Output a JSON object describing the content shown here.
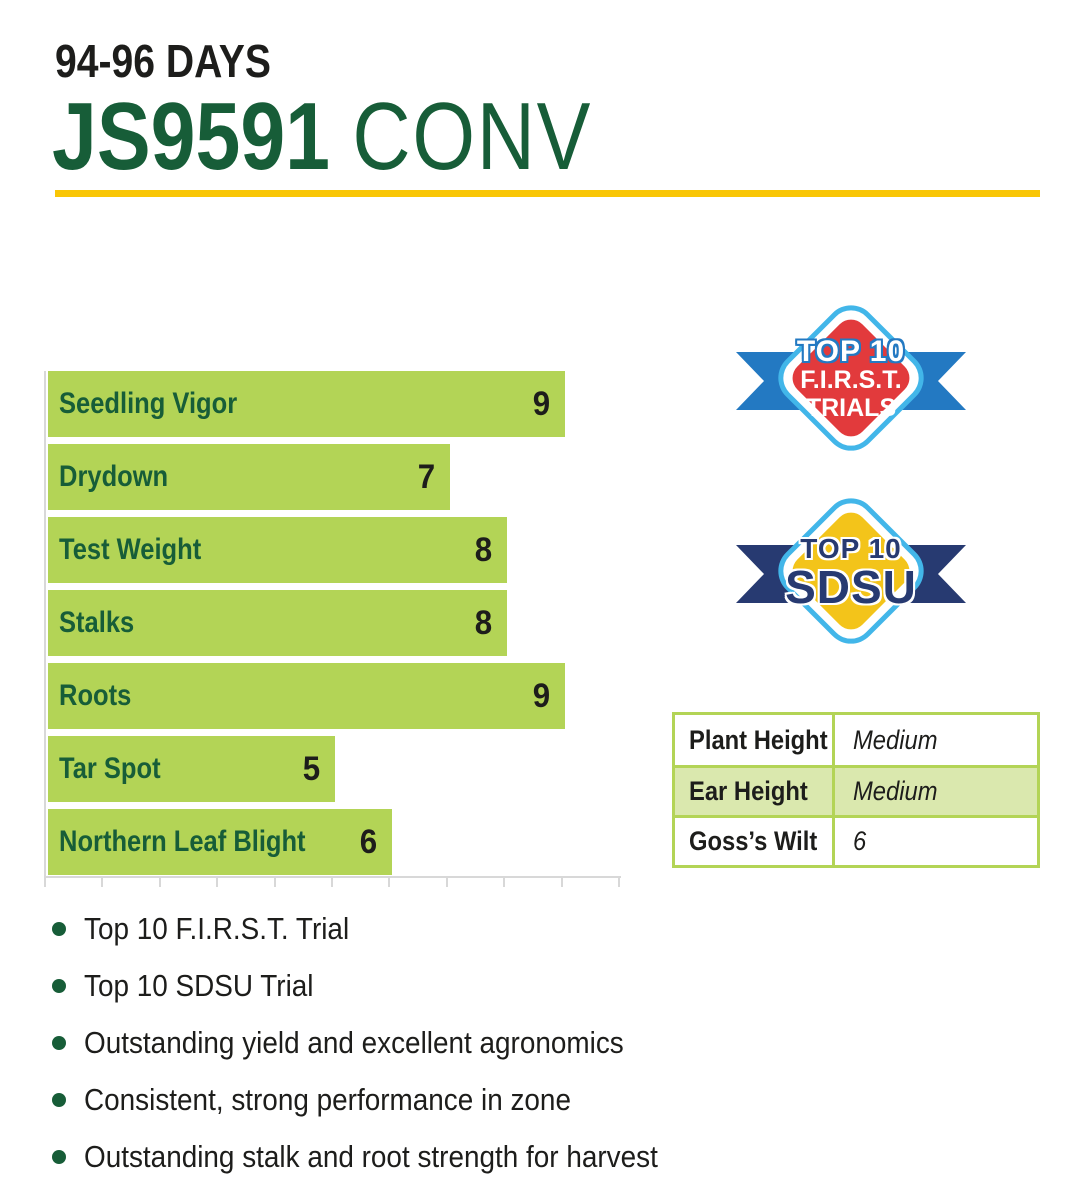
{
  "header": {
    "maturity": "94-96 DAYS",
    "hybrid": "JS9591",
    "trait_type": "CONV"
  },
  "colors": {
    "brand_green": "#175d38",
    "bar_green": "#b3d456",
    "rule_yellow": "#f9c606",
    "ribbon_blue": "#2379c2",
    "badge_red": "#e23a3c",
    "badge_light_blue": "#42b6e9",
    "ribbon_navy": "#273a71",
    "badge_gold": "#f3c41a",
    "table_shade_green": "#dae8ae",
    "axis_gray": "#d8d8d8",
    "text_black": "#1d1d1b"
  },
  "chart_data": {
    "type": "bar",
    "orientation": "horizontal",
    "title": "",
    "categories": [
      "Seedling Vigor",
      "Drydown",
      "Test Weight",
      "Stalks",
      "Roots",
      "Tar Spot",
      "Northern Leaf Blight"
    ],
    "values": [
      9,
      7,
      8,
      8,
      9,
      5,
      6
    ],
    "xlim": [
      0,
      10
    ],
    "x_ticks": [
      0,
      1,
      2,
      3,
      4,
      5,
      6,
      7,
      8,
      9,
      10
    ],
    "grid": false,
    "legend": false,
    "bar_color": "#b3d456",
    "label_color": "#175d38",
    "value_color": "#1d1d1b",
    "value_label_position": "inside-end",
    "category_label_position": "inside-start"
  },
  "badges": [
    {
      "name": "top10-first-trials",
      "line1": "TOP 10",
      "line2": "F.I.R.S.T.",
      "line3": "TRIALS",
      "diamond_color": "#e23a3c",
      "ribbon_color": "#2379c2",
      "ring_color": "#42b6e9"
    },
    {
      "name": "top10-sdsu",
      "line1": "TOP 10",
      "line2": "SDSU",
      "diamond_color": "#f3c41a",
      "ribbon_color": "#273a71",
      "ring_color": "#42b6e9"
    }
  ],
  "info_table": {
    "rows": [
      {
        "label": "Plant Height",
        "value": "Medium"
      },
      {
        "label": "Ear Height",
        "value": "Medium"
      },
      {
        "label": "Goss’s Wilt",
        "value": "6"
      }
    ]
  },
  "bullets": [
    "Top 10 F.I.R.S.T. Trial",
    "Top 10 SDSU Trial",
    "Outstanding yield and excellent agronomics",
    "Consistent, strong performance in zone",
    "Outstanding stalk and root strength for harvest"
  ]
}
